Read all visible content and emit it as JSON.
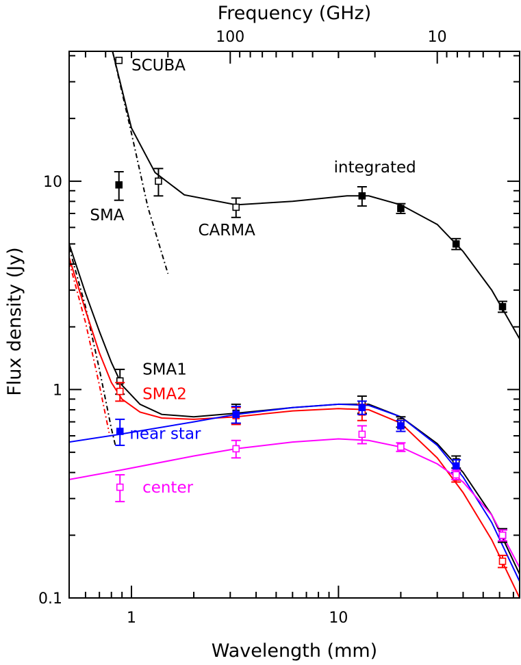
{
  "chart_data": {
    "type": "scatter",
    "title": "",
    "xlabel": "Wavelength (mm)",
    "ylabel": "Flux density (Jy)",
    "top_xlabel": "Frequency (GHz)",
    "xscale": "log",
    "yscale": "log",
    "xlim": [
      0.5,
      75
    ],
    "ylim": [
      0.1,
      42
    ],
    "x_tick_labels": [
      {
        "value": 1,
        "label": "1"
      },
      {
        "value": 10,
        "label": "10"
      }
    ],
    "y_tick_labels": [
      {
        "value": 0.1,
        "label": "0.1"
      },
      {
        "value": 1,
        "label": "1"
      },
      {
        "value": 10,
        "label": "10"
      }
    ],
    "top_tick_labels": [
      {
        "freq_ghz": 100,
        "label": "100"
      },
      {
        "freq_ghz": 10,
        "label": "10"
      }
    ],
    "series": [
      {
        "name": "integrated",
        "color": "#000000",
        "points": [
          {
            "x": 0.87,
            "y": 38.0,
            "err": 0,
            "marker": "open"
          },
          {
            "x": 1.35,
            "y": 10.0,
            "err": 1.5,
            "marker": "open"
          },
          {
            "x": 0.87,
            "y": 9.6,
            "err": 1.5,
            "marker": "filled"
          },
          {
            "x": 3.2,
            "y": 7.5,
            "err": 0.8,
            "marker": "open"
          },
          {
            "x": 13.0,
            "y": 8.5,
            "err": 0.9,
            "marker": "filled"
          },
          {
            "x": 20.0,
            "y": 7.4,
            "err": 0.4,
            "marker": "filled"
          },
          {
            "x": 37.0,
            "y": 5.0,
            "err": 0.3,
            "marker": "filled"
          },
          {
            "x": 62.0,
            "y": 2.5,
            "err": 0.15,
            "marker": "filled"
          }
        ],
        "fit": [
          [
            0.81,
            42
          ],
          [
            1.0,
            18
          ],
          [
            1.3,
            11
          ],
          [
            1.8,
            8.6
          ],
          [
            3.2,
            7.7
          ],
          [
            6,
            8.0
          ],
          [
            11,
            8.5
          ],
          [
            14,
            8.5
          ],
          [
            20,
            7.7
          ],
          [
            30,
            6.2
          ],
          [
            40,
            4.6
          ],
          [
            55,
            3.0
          ],
          [
            75,
            1.75
          ]
        ],
        "dust": [
          [
            0.81,
            42
          ],
          [
            1.0,
            17
          ],
          [
            1.2,
            7.5
          ],
          [
            1.5,
            3.6
          ]
        ]
      },
      {
        "name": "SMA1",
        "color": "#000000",
        "points": [
          {
            "x": 0.88,
            "y": 1.1,
            "err": 0.15,
            "marker": "open"
          },
          {
            "x": 3.2,
            "y": 0.77,
            "err": 0.08,
            "marker": "open"
          },
          {
            "x": 13.0,
            "y": 0.85,
            "err": 0.08,
            "marker": "open"
          },
          {
            "x": 20.0,
            "y": 0.7,
            "err": 0.04,
            "marker": "open"
          },
          {
            "x": 37.0,
            "y": 0.45,
            "err": 0.03,
            "marker": "open"
          },
          {
            "x": 62.0,
            "y": 0.2,
            "err": 0.015,
            "marker": "open"
          }
        ],
        "fit": [
          [
            0.5,
            5.0
          ],
          [
            0.6,
            2.9
          ],
          [
            0.7,
            1.9
          ],
          [
            0.8,
            1.35
          ],
          [
            0.9,
            1.05
          ],
          [
            1.1,
            0.85
          ],
          [
            1.4,
            0.76
          ],
          [
            2.0,
            0.74
          ],
          [
            3.2,
            0.77
          ],
          [
            6,
            0.82
          ],
          [
            10,
            0.85
          ],
          [
            14,
            0.85
          ],
          [
            20,
            0.74
          ],
          [
            30,
            0.55
          ],
          [
            40,
            0.4
          ],
          [
            55,
            0.25
          ],
          [
            75,
            0.13
          ]
        ],
        "dust": [
          [
            0.5,
            4.8
          ],
          [
            0.6,
            2.5
          ],
          [
            0.7,
            1.25
          ],
          [
            0.8,
            0.65
          ],
          [
            0.84,
            0.53
          ]
        ]
      },
      {
        "name": "SMA2",
        "color": "#ff0000",
        "points": [
          {
            "x": 0.88,
            "y": 0.98,
            "err": 0.1,
            "marker": "open"
          },
          {
            "x": 3.2,
            "y": 0.75,
            "err": 0.07,
            "marker": "open"
          },
          {
            "x": 13.0,
            "y": 0.78,
            "err": 0.07,
            "marker": "open"
          },
          {
            "x": 20.0,
            "y": 0.67,
            "err": 0.04,
            "marker": "open"
          },
          {
            "x": 37.0,
            "y": 0.38,
            "err": 0.02,
            "marker": "open"
          },
          {
            "x": 62.0,
            "y": 0.15,
            "err": 0.01,
            "marker": "open"
          }
        ],
        "fit": [
          [
            0.5,
            4.3
          ],
          [
            0.6,
            2.4
          ],
          [
            0.7,
            1.5
          ],
          [
            0.8,
            1.08
          ],
          [
            0.9,
            0.9
          ],
          [
            1.1,
            0.78
          ],
          [
            1.4,
            0.73
          ],
          [
            2.0,
            0.72
          ],
          [
            3.2,
            0.74
          ],
          [
            6,
            0.79
          ],
          [
            10,
            0.81
          ],
          [
            14,
            0.8
          ],
          [
            20,
            0.69
          ],
          [
            30,
            0.47
          ],
          [
            40,
            0.32
          ],
          [
            55,
            0.19
          ],
          [
            75,
            0.1
          ]
        ],
        "dust": [
          [
            0.5,
            4.1
          ],
          [
            0.6,
            2.1
          ],
          [
            0.7,
            1.05
          ],
          [
            0.78,
            0.62
          ]
        ]
      },
      {
        "name": "near star",
        "color": "#0000ff",
        "points": [
          {
            "x": 0.88,
            "y": 0.63,
            "err": 0.09,
            "marker": "filled"
          },
          {
            "x": 3.2,
            "y": 0.76,
            "err": 0.07,
            "marker": "filled"
          },
          {
            "x": 13.0,
            "y": 0.82,
            "err": 0.06,
            "marker": "filled"
          },
          {
            "x": 20.0,
            "y": 0.67,
            "err": 0.04,
            "marker": "filled"
          },
          {
            "x": 37.0,
            "y": 0.43,
            "err": 0.03,
            "marker": "filled"
          },
          {
            "x": 62.0,
            "y": 0.2,
            "err": 0.012,
            "marker": "filled"
          }
        ],
        "fit": [
          [
            0.5,
            0.56
          ],
          [
            0.88,
            0.61
          ],
          [
            2,
            0.7
          ],
          [
            3.2,
            0.76
          ],
          [
            6,
            0.82
          ],
          [
            10,
            0.85
          ],
          [
            14,
            0.84
          ],
          [
            20,
            0.74
          ],
          [
            30,
            0.54
          ],
          [
            40,
            0.38
          ],
          [
            55,
            0.23
          ],
          [
            75,
            0.12
          ]
        ]
      },
      {
        "name": "center",
        "color": "#ff00ff",
        "points": [
          {
            "x": 0.88,
            "y": 0.34,
            "err": 0.05,
            "marker": "open"
          },
          {
            "x": 3.2,
            "y": 0.52,
            "err": 0.05,
            "marker": "open"
          },
          {
            "x": 13.0,
            "y": 0.61,
            "err": 0.06,
            "marker": "open"
          },
          {
            "x": 20.0,
            "y": 0.53,
            "err": 0.025,
            "marker": "open"
          },
          {
            "x": 37.0,
            "y": 0.39,
            "err": 0.02,
            "marker": "open"
          },
          {
            "x": 62.0,
            "y": 0.2,
            "err": 0.012,
            "marker": "open"
          }
        ],
        "fit": [
          [
            0.5,
            0.37
          ],
          [
            0.88,
            0.41
          ],
          [
            2,
            0.48
          ],
          [
            3.2,
            0.52
          ],
          [
            6,
            0.56
          ],
          [
            10,
            0.58
          ],
          [
            14,
            0.57
          ],
          [
            20,
            0.53
          ],
          [
            30,
            0.44
          ],
          [
            40,
            0.36
          ],
          [
            55,
            0.25
          ],
          [
            75,
            0.14
          ]
        ]
      }
    ],
    "annotations": [
      {
        "text": "SCUBA",
        "color": "#000000",
        "x": 1.0,
        "y": 34
      },
      {
        "text": "integrated",
        "color": "#000000",
        "x": 9.5,
        "y": 11
      },
      {
        "text": "SMA",
        "color": "#000000",
        "x": 0.63,
        "y": 6.5
      },
      {
        "text": "CARMA",
        "color": "#000000",
        "x": 2.1,
        "y": 5.5
      },
      {
        "text": "SMA1",
        "color": "#000000",
        "x": 1.13,
        "y": 1.18
      },
      {
        "text": "SMA2",
        "color": "#ff0000",
        "x": 1.13,
        "y": 0.9
      },
      {
        "text": "near star",
        "color": "#0000ff",
        "x": 0.98,
        "y": 0.58
      },
      {
        "text": "center",
        "color": "#ff00ff",
        "x": 1.13,
        "y": 0.32
      }
    ]
  }
}
